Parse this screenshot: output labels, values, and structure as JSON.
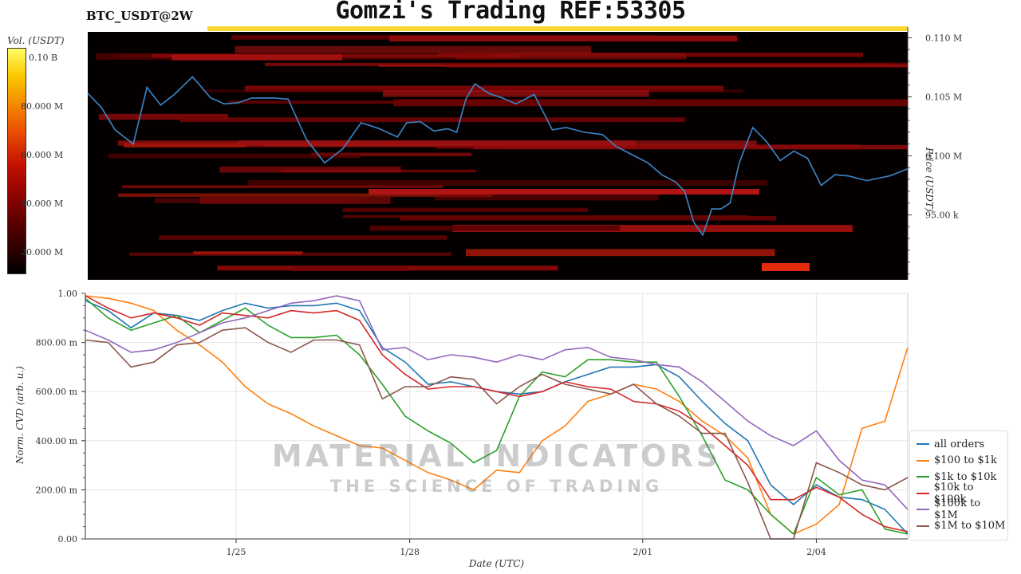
{
  "header": {
    "title": "Gomzi's Trading REF:53305",
    "pair": "BTC_USDT@2W"
  },
  "colorbar": {
    "title": "Vol. (USDT)",
    "ticks": [
      "0.10 B",
      "80.000 M",
      "60.000 M",
      "40.000 M",
      "20.000 M"
    ]
  },
  "watermark": {
    "brand": "MATERIAL INDICATORS",
    "tagline": "THE SCIENCE OF TRADING"
  },
  "chart_data": [
    {
      "type": "heatmap",
      "ylabel": "Price (USDT)",
      "y_ticks": [
        "0.110 M",
        "0.105 M",
        "0.100 M",
        "95.00 k"
      ],
      "y_tick_values": [
        110000,
        105000,
        100000,
        95000
      ],
      "ylim": [
        89500,
        110500
      ],
      "colorbar_range": [
        0,
        110000000
      ],
      "price_series": {
        "color": "#3a86c8",
        "x_days": [
          0,
          0.3,
          0.6,
          1.0,
          1.3,
          1.6,
          1.9,
          2.3,
          2.7,
          3.0,
          3.3,
          3.6,
          3.8,
          4.1,
          4.4,
          4.8,
          5.2,
          5.6,
          6.0,
          6.4,
          6.8,
          7.0,
          7.3,
          7.6,
          7.9,
          8.1,
          8.3,
          8.5,
          8.8,
          9.1,
          9.4,
          9.8,
          10.2,
          10.5,
          10.9,
          11.3,
          11.6,
          12.0,
          12.3,
          12.6,
          12.9,
          13.1,
          13.3,
          13.5,
          13.7,
          13.9,
          14.1,
          14.3,
          14.6,
          14.9,
          15.2,
          15.5,
          15.8,
          16.1,
          16.4,
          16.7,
          17.1,
          17.6,
          18.0
        ],
        "price": [
          105300,
          104100,
          102200,
          101000,
          105800,
          104300,
          105200,
          106700,
          104900,
          104400,
          104500,
          104900,
          104900,
          104900,
          104800,
          101400,
          99400,
          100600,
          102800,
          102300,
          101600,
          102800,
          102900,
          102100,
          102300,
          102000,
          104800,
          106100,
          105300,
          104900,
          104400,
          105200,
          102200,
          102400,
          102000,
          101800,
          100800,
          100000,
          99400,
          98400,
          97800,
          97000,
          94400,
          93300,
          95500,
          95500,
          96000,
          99400,
          102400,
          101200,
          99600,
          100400,
          99800,
          97500,
          98400,
          98300,
          97900,
          98300,
          98900
        ]
      }
    },
    {
      "type": "line",
      "xlabel": "Date (UTC)",
      "ylabel": "Norm. CVD (arb. u.)",
      "ylim": [
        0,
        1
      ],
      "x_ticks": [
        "1/25",
        "1/28",
        "2/01",
        "2/04"
      ],
      "x_tick_days": [
        3.3,
        7.1,
        12.2,
        16.0
      ],
      "y_ticks": [
        "1.00",
        "800.00 m",
        "600.00 m",
        "400.00 m",
        "200.00 m",
        "0.00"
      ],
      "y_tick_values": [
        1.0,
        0.8,
        0.6,
        0.4,
        0.2,
        0.0
      ],
      "x_days": [
        0,
        0.5,
        1.0,
        1.5,
        2.0,
        2.5,
        3.0,
        3.5,
        4.0,
        4.5,
        5.0,
        5.5,
        6.0,
        6.5,
        7.0,
        7.5,
        8.0,
        8.5,
        9.0,
        9.5,
        10.0,
        10.5,
        11.0,
        11.5,
        12.0,
        12.5,
        13.0,
        13.5,
        14.0,
        14.5,
        15.0,
        15.5,
        16.0,
        16.5,
        17.0,
        17.5,
        18.0
      ],
      "series": [
        {
          "name": "all orders",
          "color": "#1f77b4",
          "values": [
            0.97,
            0.93,
            0.86,
            0.92,
            0.91,
            0.89,
            0.93,
            0.96,
            0.94,
            0.95,
            0.95,
            0.96,
            0.93,
            0.78,
            0.72,
            0.63,
            0.64,
            0.62,
            0.6,
            0.59,
            0.6,
            0.64,
            0.67,
            0.7,
            0.7,
            0.71,
            0.66,
            0.56,
            0.47,
            0.4,
            0.22,
            0.14,
            0.22,
            0.17,
            0.16,
            0.12,
            0.02
          ]
        },
        {
          "name": "$100 to $1k",
          "color": "#ff7f0e",
          "values": [
            0.99,
            0.98,
            0.96,
            0.93,
            0.85,
            0.79,
            0.72,
            0.62,
            0.55,
            0.51,
            0.46,
            0.42,
            0.38,
            0.37,
            0.32,
            0.27,
            0.24,
            0.2,
            0.28,
            0.27,
            0.4,
            0.46,
            0.56,
            0.59,
            0.63,
            0.61,
            0.56,
            0.48,
            0.42,
            0.33,
            0.1,
            0.02,
            0.06,
            0.14,
            0.45,
            0.48,
            0.78
          ]
        },
        {
          "name": "$1k to $10k",
          "color": "#2ca02c",
          "values": [
            0.98,
            0.9,
            0.85,
            0.88,
            0.91,
            0.84,
            0.89,
            0.94,
            0.87,
            0.82,
            0.82,
            0.83,
            0.75,
            0.63,
            0.5,
            0.44,
            0.39,
            0.31,
            0.36,
            0.58,
            0.68,
            0.66,
            0.73,
            0.73,
            0.72,
            0.72,
            0.58,
            0.42,
            0.24,
            0.2,
            0.1,
            0.02,
            0.25,
            0.18,
            0.2,
            0.04,
            0.02
          ]
        },
        {
          "name": "$10k to $100k",
          "color": "#d62728",
          "values": [
            0.99,
            0.94,
            0.9,
            0.92,
            0.9,
            0.87,
            0.92,
            0.91,
            0.9,
            0.93,
            0.92,
            0.93,
            0.89,
            0.75,
            0.67,
            0.61,
            0.62,
            0.62,
            0.6,
            0.58,
            0.6,
            0.64,
            0.62,
            0.61,
            0.56,
            0.55,
            0.52,
            0.46,
            0.38,
            0.3,
            0.16,
            0.16,
            0.21,
            0.17,
            0.1,
            0.05,
            0.03
          ]
        },
        {
          "name": "$100k to $1M",
          "color": "#9467bd",
          "values": [
            0.85,
            0.81,
            0.76,
            0.77,
            0.8,
            0.84,
            0.88,
            0.9,
            0.93,
            0.96,
            0.97,
            0.99,
            0.97,
            0.77,
            0.78,
            0.73,
            0.75,
            0.74,
            0.72,
            0.75,
            0.73,
            0.77,
            0.78,
            0.74,
            0.73,
            0.71,
            0.7,
            0.64,
            0.56,
            0.48,
            0.42,
            0.38,
            0.44,
            0.32,
            0.24,
            0.22,
            0.12
          ]
        },
        {
          "name": "$1M to $10M",
          "color": "#8c564b",
          "values": [
            0.81,
            0.8,
            0.7,
            0.72,
            0.79,
            0.8,
            0.85,
            0.86,
            0.8,
            0.76,
            0.81,
            0.81,
            0.79,
            0.57,
            0.62,
            0.62,
            0.66,
            0.65,
            0.55,
            0.62,
            0.67,
            0.63,
            0.61,
            0.59,
            0.63,
            0.55,
            0.5,
            0.43,
            0.43,
            0.23,
            0.0,
            0.0,
            0.31,
            0.27,
            0.22,
            0.2,
            0.25
          ]
        }
      ],
      "legend_position": "bottom-right"
    }
  ]
}
